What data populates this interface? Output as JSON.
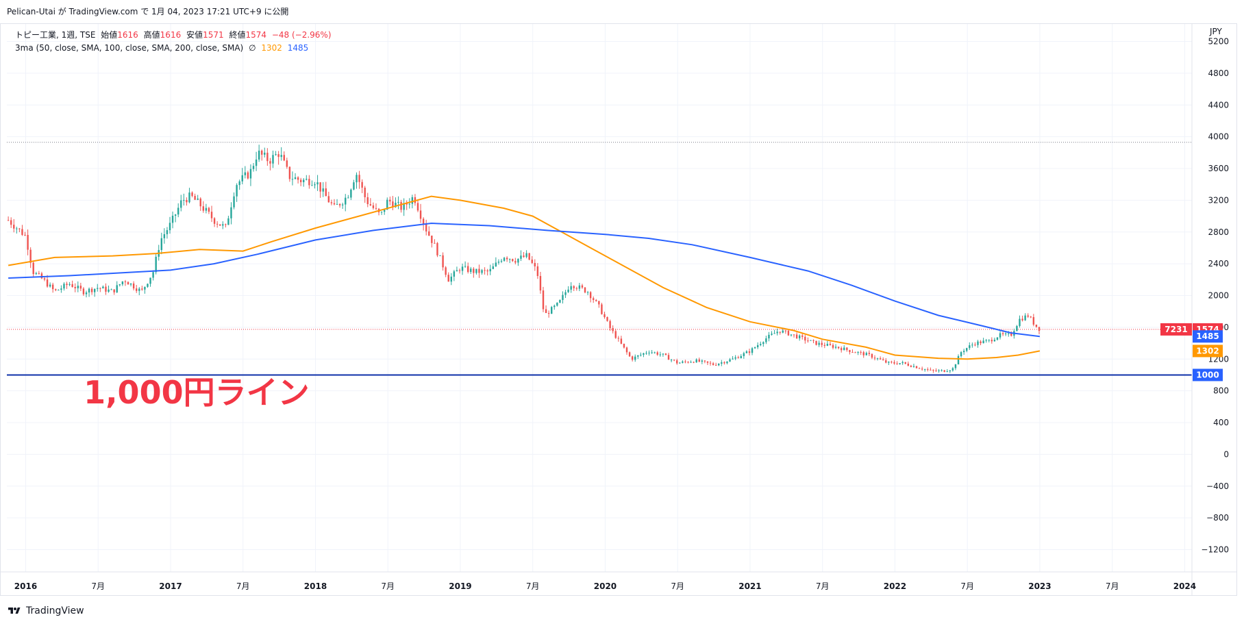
{
  "header": {
    "publish_line": "Pelican-Utai が TradingView.com で 1月 04, 2023 17:21 UTC+9 に公開"
  },
  "legend": {
    "symbol": "トピー工業, 1週, TSE",
    "open_label": "始値",
    "open_value": "1616",
    "high_label": "高値",
    "high_value": "1616",
    "low_label": "安値",
    "low_value": "1571",
    "close_label": "終値",
    "close_value": "1574",
    "change": "−48 (−2.96%)",
    "indicator": "3ma (50, close, SMA, 100, close, SMA, 200, close, SMA)",
    "indicator_icon": "∅",
    "ma100_value": "1302",
    "ma200_value": "1485"
  },
  "footer": {
    "brand": "TradingView"
  },
  "colors": {
    "up": "#26a69a",
    "down": "#ef5350",
    "ma100": "#ff9800",
    "ma200": "#2962ff",
    "line_1000": "#0d2fa8",
    "annotation": "#f23645"
  },
  "chart_data": {
    "type": "candlestick",
    "currency": "JPY",
    "y_ticks": [
      "5200",
      "4800",
      "4400",
      "4000",
      "3600",
      "3200",
      "2800",
      "2400",
      "2000",
      "1600",
      "1200",
      "800",
      "400",
      "0",
      "−400",
      "−800",
      "−1200"
    ],
    "y_tick_values": [
      5200,
      4800,
      4400,
      4000,
      3600,
      3200,
      2800,
      2400,
      2000,
      1600,
      1200,
      800,
      400,
      0,
      -400,
      -800,
      -1200
    ],
    "ylim": [
      -1480,
      5420
    ],
    "x_ticks": [
      {
        "label": "2016",
        "t": 2016.0,
        "year": true
      },
      {
        "label": "7月",
        "t": 2016.5,
        "year": false
      },
      {
        "label": "2017",
        "t": 2017.0,
        "year": true
      },
      {
        "label": "7月",
        "t": 2017.5,
        "year": false
      },
      {
        "label": "2018",
        "t": 2018.0,
        "year": true
      },
      {
        "label": "7月",
        "t": 2018.5,
        "year": false
      },
      {
        "label": "2019",
        "t": 2019.0,
        "year": true
      },
      {
        "label": "7月",
        "t": 2019.5,
        "year": false
      },
      {
        "label": "2020",
        "t": 2020.0,
        "year": true
      },
      {
        "label": "7月",
        "t": 2020.5,
        "year": false
      },
      {
        "label": "2021",
        "t": 2021.0,
        "year": true
      },
      {
        "label": "7月",
        "t": 2021.5,
        "year": false
      },
      {
        "label": "2022",
        "t": 2022.0,
        "year": true
      },
      {
        "label": "7月",
        "t": 2022.5,
        "year": false
      },
      {
        "label": "2023",
        "t": 2023.0,
        "year": true
      },
      {
        "label": "7月",
        "t": 2023.5,
        "year": false
      },
      {
        "label": "2024",
        "t": 2024.0,
        "year": true
      }
    ],
    "xlim": [
      2015.87,
      2024.05
    ],
    "price_path": [
      [
        2015.88,
        2950
      ],
      [
        2016.0,
        2750
      ],
      [
        2016.05,
        2300
      ],
      [
        2016.12,
        2200
      ],
      [
        2016.2,
        2050
      ],
      [
        2016.3,
        2150
      ],
      [
        2016.4,
        2050
      ],
      [
        2016.5,
        2100
      ],
      [
        2016.6,
        2050
      ],
      [
        2016.68,
        2200
      ],
      [
        2016.8,
        2050
      ],
      [
        2016.88,
        2300
      ],
      [
        2016.93,
        2700
      ],
      [
        2017.0,
        2900
      ],
      [
        2017.08,
        3200
      ],
      [
        2017.14,
        3250
      ],
      [
        2017.2,
        3150
      ],
      [
        2017.3,
        2950
      ],
      [
        2017.38,
        2850
      ],
      [
        2017.45,
        3400
      ],
      [
        2017.55,
        3550
      ],
      [
        2017.6,
        3800
      ],
      [
        2017.68,
        3700
      ],
      [
        2017.75,
        3800
      ],
      [
        2017.82,
        3500
      ],
      [
        2017.9,
        3450
      ],
      [
        2018.0,
        3450
      ],
      [
        2018.05,
        3300
      ],
      [
        2018.13,
        3100
      ],
      [
        2018.22,
        3250
      ],
      [
        2018.28,
        3550
      ],
      [
        2018.35,
        3200
      ],
      [
        2018.45,
        3000
      ],
      [
        2018.5,
        3200
      ],
      [
        2018.6,
        3100
      ],
      [
        2018.68,
        3250
      ],
      [
        2018.76,
        2850
      ],
      [
        2018.83,
        2600
      ],
      [
        2018.92,
        2200
      ],
      [
        2019.0,
        2350
      ],
      [
        2019.1,
        2300
      ],
      [
        2019.2,
        2300
      ],
      [
        2019.3,
        2500
      ],
      [
        2019.38,
        2450
      ],
      [
        2019.46,
        2500
      ],
      [
        2019.53,
        2300
      ],
      [
        2019.58,
        1750
      ],
      [
        2019.68,
        1900
      ],
      [
        2019.76,
        2150
      ],
      [
        2019.88,
        2050
      ],
      [
        2019.96,
        1850
      ],
      [
        2020.03,
        1600
      ],
      [
        2020.18,
        1200
      ],
      [
        2020.3,
        1300
      ],
      [
        2020.4,
        1250
      ],
      [
        2020.5,
        1150
      ],
      [
        2020.62,
        1180
      ],
      [
        2020.75,
        1130
      ],
      [
        2020.88,
        1200
      ],
      [
        2021.0,
        1300
      ],
      [
        2021.1,
        1450
      ],
      [
        2021.2,
        1560
      ],
      [
        2021.3,
        1500
      ],
      [
        2021.45,
        1400
      ],
      [
        2021.6,
        1350
      ],
      [
        2021.7,
        1300
      ],
      [
        2021.82,
        1250
      ],
      [
        2021.95,
        1150
      ],
      [
        2022.05,
        1150
      ],
      [
        2022.15,
        1100
      ],
      [
        2022.25,
        1050
      ],
      [
        2022.33,
        1050
      ],
      [
        2022.4,
        1080
      ],
      [
        2022.46,
        1300
      ],
      [
        2022.55,
        1400
      ],
      [
        2022.65,
        1430
      ],
      [
        2022.72,
        1500
      ],
      [
        2022.8,
        1500
      ],
      [
        2022.86,
        1700
      ],
      [
        2022.92,
        1750
      ],
      [
        2022.97,
        1620
      ],
      [
        2023.0,
        1574
      ]
    ],
    "ma100": [
      [
        2015.88,
        2380
      ],
      [
        2016.2,
        2480
      ],
      [
        2016.6,
        2500
      ],
      [
        2016.9,
        2530
      ],
      [
        2017.2,
        2580
      ],
      [
        2017.5,
        2560
      ],
      [
        2017.7,
        2680
      ],
      [
        2018.0,
        2850
      ],
      [
        2018.3,
        3000
      ],
      [
        2018.6,
        3150
      ],
      [
        2018.8,
        3250
      ],
      [
        2019.0,
        3200
      ],
      [
        2019.3,
        3100
      ],
      [
        2019.5,
        3000
      ],
      [
        2019.7,
        2800
      ],
      [
        2019.9,
        2600
      ],
      [
        2020.1,
        2400
      ],
      [
        2020.4,
        2100
      ],
      [
        2020.7,
        1850
      ],
      [
        2021.0,
        1670
      ],
      [
        2021.3,
        1560
      ],
      [
        2021.5,
        1450
      ],
      [
        2021.8,
        1350
      ],
      [
        2022.0,
        1250
      ],
      [
        2022.3,
        1210
      ],
      [
        2022.5,
        1200
      ],
      [
        2022.7,
        1220
      ],
      [
        2022.85,
        1250
      ],
      [
        2023.0,
        1302
      ]
    ],
    "ma200": [
      [
        2015.88,
        2220
      ],
      [
        2016.3,
        2250
      ],
      [
        2016.7,
        2290
      ],
      [
        2017.0,
        2320
      ],
      [
        2017.3,
        2400
      ],
      [
        2017.6,
        2520
      ],
      [
        2018.0,
        2700
      ],
      [
        2018.4,
        2820
      ],
      [
        2018.8,
        2910
      ],
      [
        2019.2,
        2880
      ],
      [
        2019.6,
        2820
      ],
      [
        2020.0,
        2770
      ],
      [
        2020.3,
        2720
      ],
      [
        2020.6,
        2640
      ],
      [
        2021.0,
        2480
      ],
      [
        2021.4,
        2310
      ],
      [
        2021.7,
        2130
      ],
      [
        2022.0,
        1930
      ],
      [
        2022.3,
        1750
      ],
      [
        2022.6,
        1620
      ],
      [
        2022.8,
        1530
      ],
      [
        2023.0,
        1485
      ]
    ],
    "horizontal_lines": [
      {
        "price": 1000,
        "style": "solid"
      },
      {
        "price": 3930,
        "style": "dotted"
      },
      {
        "price": 1574,
        "style": "dotted"
      }
    ],
    "price_tags": [
      {
        "label": "1574",
        "price": 1574,
        "role": "last",
        "color": "#f23645"
      },
      {
        "label": "1485",
        "price": 1485,
        "role": "ma200",
        "color": "#2962ff"
      },
      {
        "label": "1302",
        "price": 1302,
        "role": "ma100",
        "color": "#ff9800"
      },
      {
        "label": "1000",
        "price": 1000,
        "role": "line",
        "color": "#2962ff"
      }
    ],
    "countdown_label": "7231",
    "annotation": {
      "text": "1,000円ライン",
      "t": 2016.4,
      "price": 780
    }
  }
}
